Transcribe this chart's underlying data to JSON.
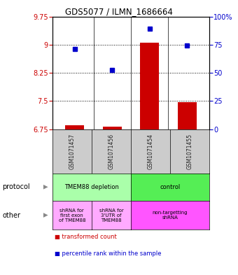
{
  "title": "GDS5077 / ILMN_1686664",
  "samples": [
    "GSM1071457",
    "GSM1071456",
    "GSM1071454",
    "GSM1071455"
  ],
  "red_values": [
    6.85,
    6.82,
    9.05,
    7.48
  ],
  "blue_values": [
    8.88,
    8.32,
    9.42,
    8.97
  ],
  "ylim_left": [
    6.75,
    9.75
  ],
  "ylim_right": [
    0,
    100
  ],
  "yticks_left": [
    6.75,
    7.5,
    8.25,
    9.0,
    9.75
  ],
  "yticks_left_labels": [
    "6.75",
    "7.5",
    "8.25",
    "9",
    "9.75"
  ],
  "yticks_right": [
    0,
    25,
    50,
    75,
    100
  ],
  "yticks_right_labels": [
    "0",
    "25",
    "50",
    "75",
    "100%"
  ],
  "hlines": [
    7.5,
    8.25,
    9.0
  ],
  "protocol_labels": [
    "TMEM88 depletion",
    "control"
  ],
  "protocol_colors": [
    "#aaffaa",
    "#55ee55"
  ],
  "other_labels_left1": "shRNA for\nfirst exon\nof TMEM88",
  "other_labels_left2": "shRNA for\n3'UTR of\nTMEM88",
  "other_labels_right": "non-targetting\nshRNA",
  "other_color_light": "#ffaaff",
  "other_color_bright": "#ff55ff",
  "legend_red": "transformed count",
  "legend_blue": "percentile rank within the sample",
  "red_color": "#CC0000",
  "blue_color": "#0000CC",
  "bar_width": 0.5,
  "sample_label_color": "#222222",
  "sample_bg_color": "#cccccc",
  "protocol_arrow_label": "protocol",
  "other_arrow_label": "other",
  "arrow_color": "#888888"
}
